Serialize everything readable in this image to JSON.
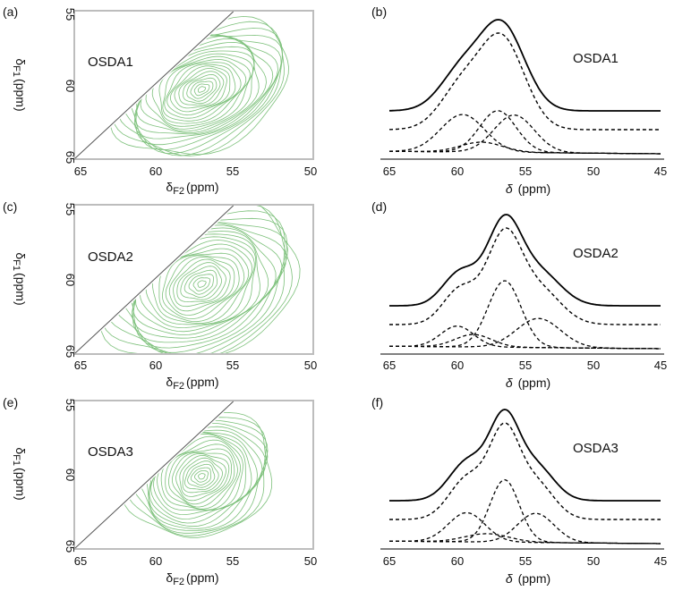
{
  "panels_2d": [
    {
      "panel_label": "(a)",
      "sample": "OSDA1",
      "x_ticks": [
        "65",
        "60",
        "55",
        "50"
      ],
      "y_ticks": [
        "55",
        "60",
        "65"
      ],
      "xlabel_symbol": "δ",
      "xlabel_sub": "F2",
      "xlabel_unit": "(ppm)",
      "ylabel_symbol": "δ",
      "ylabel_sub": "F1",
      "ylabel_unit": "(ppm)"
    },
    {
      "panel_label": "(c)",
      "sample": "OSDA2",
      "x_ticks": [
        "65",
        "60",
        "55",
        "50"
      ],
      "y_ticks": [
        "55",
        "60",
        "65"
      ],
      "xlabel_symbol": "δ",
      "xlabel_sub": "F2",
      "xlabel_unit": "(ppm)",
      "ylabel_symbol": "δ",
      "ylabel_sub": "F1",
      "ylabel_unit": "(ppm)"
    },
    {
      "panel_label": "(e)",
      "sample": "OSDA3",
      "x_ticks": [
        "65",
        "60",
        "55",
        "50"
      ],
      "y_ticks": [
        "55",
        "60",
        "65"
      ],
      "xlabel_symbol": "δ",
      "xlabel_sub": "F2",
      "xlabel_unit": "(ppm)",
      "ylabel_symbol": "δ",
      "ylabel_sub": "F1",
      "ylabel_unit": "(ppm)"
    }
  ],
  "panels_1d": [
    {
      "panel_label": "(b)",
      "sample": "OSDA1",
      "x_ticks": [
        "65",
        "60",
        "55",
        "50",
        "45"
      ],
      "xlabel_symbol": "δ",
      "xlabel_unit": "(ppm)"
    },
    {
      "panel_label": "(d)",
      "sample": "OSDA2",
      "x_ticks": [
        "65",
        "60",
        "55",
        "50",
        "45"
      ],
      "xlabel_symbol": "δ",
      "xlabel_unit": "(ppm)"
    },
    {
      "panel_label": "(f)",
      "sample": "OSDA3",
      "x_ticks": [
        "65",
        "60",
        "55",
        "50",
        "45"
      ],
      "xlabel_symbol": "δ",
      "xlabel_unit": "(ppm)"
    }
  ],
  "colors": {
    "contour": "#7cc07a",
    "diagonal": "#555555",
    "frame_2d": "#bdbdbd",
    "spectrum": "#000000"
  },
  "chart_data": [
    {
      "type": "contour",
      "sample": "OSDA1",
      "x_range": [
        65,
        50
      ],
      "y_range": [
        55,
        65
      ],
      "diagonal": true,
      "contour_center": [
        57,
        60.3
      ],
      "contour_spread": [
        4.2,
        2.3
      ],
      "max_extent_x": [
        62.5,
        50.5
      ],
      "max_extent_y": [
        56.5,
        64.5
      ],
      "levels": 24
    },
    {
      "type": "line",
      "sample": "OSDA1",
      "x_range": [
        65,
        45
      ],
      "baseline_total": 0.55,
      "total_height": 1.0,
      "peaks": [
        {
          "center": 59.6,
          "width": 2.4,
          "height": 0.45
        },
        {
          "center": 57.0,
          "width": 2.0,
          "height": 0.5
        },
        {
          "center": 55.8,
          "width": 2.2,
          "height": 0.45
        },
        {
          "center": 58.2,
          "width": 2.3,
          "height": 0.12
        }
      ]
    },
    {
      "type": "contour",
      "sample": "OSDA2",
      "x_range": [
        65,
        50
      ],
      "y_range": [
        55,
        65
      ],
      "diagonal": true,
      "contour_center": [
        57,
        60.3
      ],
      "contour_spread": [
        4.5,
        2.6
      ],
      "max_extent_x": [
        63.0,
        50.0
      ],
      "max_extent_y": [
        55.0,
        64.6
      ],
      "levels": 24
    },
    {
      "type": "line",
      "sample": "OSDA2",
      "x_range": [
        65,
        45
      ],
      "baseline_total": 0.5,
      "total_height": 1.0,
      "peaks": [
        {
          "center": 56.5,
          "width": 1.8,
          "height": 0.8
        },
        {
          "center": 54.0,
          "width": 2.4,
          "height": 0.35
        },
        {
          "center": 60.0,
          "width": 1.8,
          "height": 0.25
        },
        {
          "center": 58.8,
          "width": 2.0,
          "height": 0.15
        }
      ]
    },
    {
      "type": "contour",
      "sample": "OSDA3",
      "x_range": [
        65,
        50
      ],
      "y_range": [
        55,
        65
      ],
      "diagonal": true,
      "contour_center": [
        57,
        60.1
      ],
      "contour_spread": [
        3.6,
        2.2
      ],
      "max_extent_x": [
        61.5,
        52.0
      ],
      "max_extent_y": [
        56.5,
        64.5
      ],
      "levels": 22
    },
    {
      "type": "line",
      "sample": "OSDA3",
      "x_range": [
        65,
        45
      ],
      "baseline_total": 0.45,
      "total_height": 1.0,
      "peaks": [
        {
          "center": 56.5,
          "width": 1.6,
          "height": 0.75
        },
        {
          "center": 59.3,
          "width": 2.0,
          "height": 0.35
        },
        {
          "center": 54.2,
          "width": 2.0,
          "height": 0.35
        },
        {
          "center": 57.8,
          "width": 2.4,
          "height": 0.1
        }
      ]
    }
  ]
}
